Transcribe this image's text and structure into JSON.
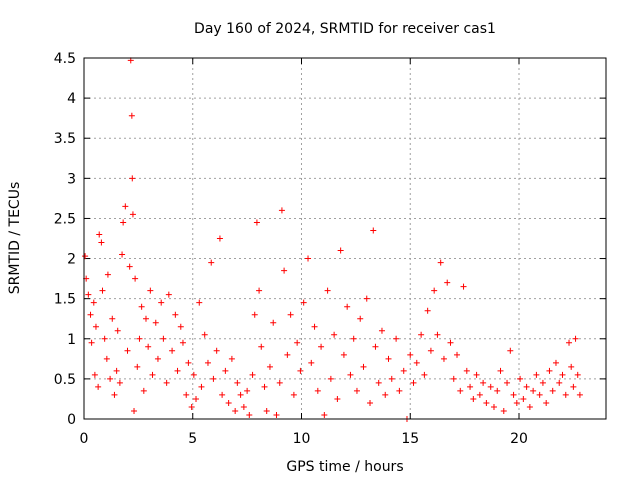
{
  "chart_data": {
    "type": "scatter",
    "title": "Day 160 of 2024, SRMTID for receiver cas1",
    "xlabel": "GPS time / hours",
    "ylabel": "SRMTID / TECUs",
    "xlim": [
      0,
      24
    ],
    "ylim": [
      0,
      4.5
    ],
    "grid": true,
    "marker": "+",
    "x_ticks": [
      0,
      5,
      10,
      15,
      20
    ],
    "x_tick_labels": [
      "0",
      "5",
      "10",
      "15",
      "20"
    ],
    "y_ticks": [
      0,
      0.5,
      1,
      1.5,
      2,
      2.5,
      3,
      3.5,
      4,
      4.5
    ],
    "y_tick_labels": [
      "0",
      "0.5",
      "1",
      "1.5",
      "2",
      "2.5",
      "3",
      "3.5",
      "4",
      "4.5"
    ],
    "series": [
      {
        "name": "cas1",
        "color": "#ff0000",
        "points": [
          [
            0.05,
            2.03
          ],
          [
            0.1,
            1.75
          ],
          [
            0.2,
            1.55
          ],
          [
            0.3,
            1.3
          ],
          [
            0.35,
            0.95
          ],
          [
            0.45,
            1.45
          ],
          [
            0.5,
            0.55
          ],
          [
            0.55,
            1.15
          ],
          [
            0.65,
            0.4
          ],
          [
            0.7,
            2.3
          ],
          [
            0.8,
            2.2
          ],
          [
            0.85,
            1.6
          ],
          [
            0.95,
            1.0
          ],
          [
            1.05,
            0.75
          ],
          [
            1.1,
            1.8
          ],
          [
            1.2,
            0.5
          ],
          [
            1.3,
            1.25
          ],
          [
            1.4,
            0.3
          ],
          [
            1.5,
            0.6
          ],
          [
            1.55,
            1.1
          ],
          [
            1.65,
            0.45
          ],
          [
            1.75,
            2.05
          ],
          [
            1.8,
            2.45
          ],
          [
            1.9,
            2.65
          ],
          [
            2.0,
            0.85
          ],
          [
            2.1,
            1.9
          ],
          [
            2.15,
            4.47
          ],
          [
            2.2,
            3.78
          ],
          [
            2.22,
            3.0
          ],
          [
            2.25,
            2.55
          ],
          [
            2.3,
            0.1
          ],
          [
            2.35,
            1.75
          ],
          [
            2.45,
            0.65
          ],
          [
            2.55,
            1.0
          ],
          [
            2.65,
            1.4
          ],
          [
            2.75,
            0.35
          ],
          [
            2.85,
            1.25
          ],
          [
            2.95,
            0.9
          ],
          [
            3.05,
            1.6
          ],
          [
            3.15,
            0.55
          ],
          [
            3.3,
            1.2
          ],
          [
            3.4,
            0.75
          ],
          [
            3.55,
            1.45
          ],
          [
            3.65,
            1.0
          ],
          [
            3.8,
            0.45
          ],
          [
            3.9,
            1.55
          ],
          [
            4.05,
            0.85
          ],
          [
            4.2,
            1.3
          ],
          [
            4.3,
            0.6
          ],
          [
            4.45,
            1.15
          ],
          [
            4.55,
            0.95
          ],
          [
            4.7,
            0.3
          ],
          [
            4.8,
            0.7
          ],
          [
            4.95,
            0.15
          ],
          [
            5.05,
            0.55
          ],
          [
            5.15,
            0.25
          ],
          [
            5.3,
            1.45
          ],
          [
            5.4,
            0.4
          ],
          [
            5.55,
            1.05
          ],
          [
            5.7,
            0.7
          ],
          [
            5.85,
            1.95
          ],
          [
            5.95,
            0.5
          ],
          [
            6.1,
            0.85
          ],
          [
            6.25,
            2.25
          ],
          [
            6.35,
            0.3
          ],
          [
            6.5,
            0.6
          ],
          [
            6.65,
            0.2
          ],
          [
            6.8,
            0.75
          ],
          [
            6.95,
            0.1
          ],
          [
            7.05,
            0.45
          ],
          [
            7.2,
            0.3
          ],
          [
            7.35,
            0.15
          ],
          [
            7.5,
            0.35
          ],
          [
            7.6,
            0.05
          ],
          [
            7.75,
            0.55
          ],
          [
            7.85,
            1.3
          ],
          [
            7.95,
            2.45
          ],
          [
            8.05,
            1.6
          ],
          [
            8.15,
            0.9
          ],
          [
            8.3,
            0.4
          ],
          [
            8.4,
            0.1
          ],
          [
            8.55,
            0.65
          ],
          [
            8.7,
            1.2
          ],
          [
            8.85,
            0.05
          ],
          [
            9.0,
            0.45
          ],
          [
            9.1,
            2.6
          ],
          [
            9.2,
            1.85
          ],
          [
            9.35,
            0.8
          ],
          [
            9.5,
            1.3
          ],
          [
            9.65,
            0.3
          ],
          [
            9.8,
            0.95
          ],
          [
            9.95,
            0.6
          ],
          [
            10.1,
            1.45
          ],
          [
            10.3,
            2.0
          ],
          [
            10.45,
            0.7
          ],
          [
            10.6,
            1.15
          ],
          [
            10.75,
            0.35
          ],
          [
            10.9,
            0.9
          ],
          [
            11.05,
            0.05
          ],
          [
            11.2,
            1.6
          ],
          [
            11.35,
            0.5
          ],
          [
            11.5,
            1.05
          ],
          [
            11.65,
            0.25
          ],
          [
            11.8,
            2.1
          ],
          [
            11.95,
            0.8
          ],
          [
            12.1,
            1.4
          ],
          [
            12.25,
            0.55
          ],
          [
            12.4,
            1.0
          ],
          [
            12.55,
            0.35
          ],
          [
            12.7,
            1.25
          ],
          [
            12.85,
            0.65
          ],
          [
            13.0,
            1.5
          ],
          [
            13.15,
            0.2
          ],
          [
            13.3,
            2.35
          ],
          [
            13.4,
            0.9
          ],
          [
            13.55,
            0.45
          ],
          [
            13.7,
            1.1
          ],
          [
            13.85,
            0.3
          ],
          [
            14.0,
            0.75
          ],
          [
            14.15,
            0.5
          ],
          [
            14.35,
            1.0
          ],
          [
            14.5,
            0.35
          ],
          [
            14.7,
            0.6
          ],
          [
            14.85,
            0.0
          ],
          [
            15.0,
            0.8
          ],
          [
            15.15,
            0.45
          ],
          [
            15.3,
            0.7
          ],
          [
            15.5,
            1.05
          ],
          [
            15.65,
            0.55
          ],
          [
            15.8,
            1.35
          ],
          [
            15.95,
            0.85
          ],
          [
            16.1,
            1.6
          ],
          [
            16.25,
            1.05
          ],
          [
            16.4,
            1.95
          ],
          [
            16.55,
            0.75
          ],
          [
            16.7,
            1.7
          ],
          [
            16.85,
            0.95
          ],
          [
            17.0,
            0.5
          ],
          [
            17.15,
            0.8
          ],
          [
            17.3,
            0.35
          ],
          [
            17.45,
            1.65
          ],
          [
            17.6,
            0.6
          ],
          [
            17.75,
            0.4
          ],
          [
            17.9,
            0.25
          ],
          [
            18.05,
            0.55
          ],
          [
            18.2,
            0.3
          ],
          [
            18.35,
            0.45
          ],
          [
            18.5,
            0.2
          ],
          [
            18.7,
            0.4
          ],
          [
            18.85,
            0.15
          ],
          [
            19.0,
            0.35
          ],
          [
            19.15,
            0.6
          ],
          [
            19.3,
            0.1
          ],
          [
            19.45,
            0.45
          ],
          [
            19.6,
            0.85
          ],
          [
            19.75,
            0.3
          ],
          [
            19.9,
            0.2
          ],
          [
            20.05,
            0.5
          ],
          [
            20.2,
            0.25
          ],
          [
            20.35,
            0.4
          ],
          [
            20.5,
            0.15
          ],
          [
            20.65,
            0.35
          ],
          [
            20.8,
            0.55
          ],
          [
            20.95,
            0.3
          ],
          [
            21.1,
            0.45
          ],
          [
            21.25,
            0.2
          ],
          [
            21.4,
            0.6
          ],
          [
            21.55,
            0.35
          ],
          [
            21.7,
            0.7
          ],
          [
            21.85,
            0.45
          ],
          [
            22.0,
            0.55
          ],
          [
            22.15,
            0.3
          ],
          [
            22.3,
            0.95
          ],
          [
            22.4,
            0.65
          ],
          [
            22.5,
            0.4
          ],
          [
            22.6,
            1.0
          ],
          [
            22.7,
            0.55
          ],
          [
            22.8,
            0.3
          ]
        ]
      }
    ]
  }
}
